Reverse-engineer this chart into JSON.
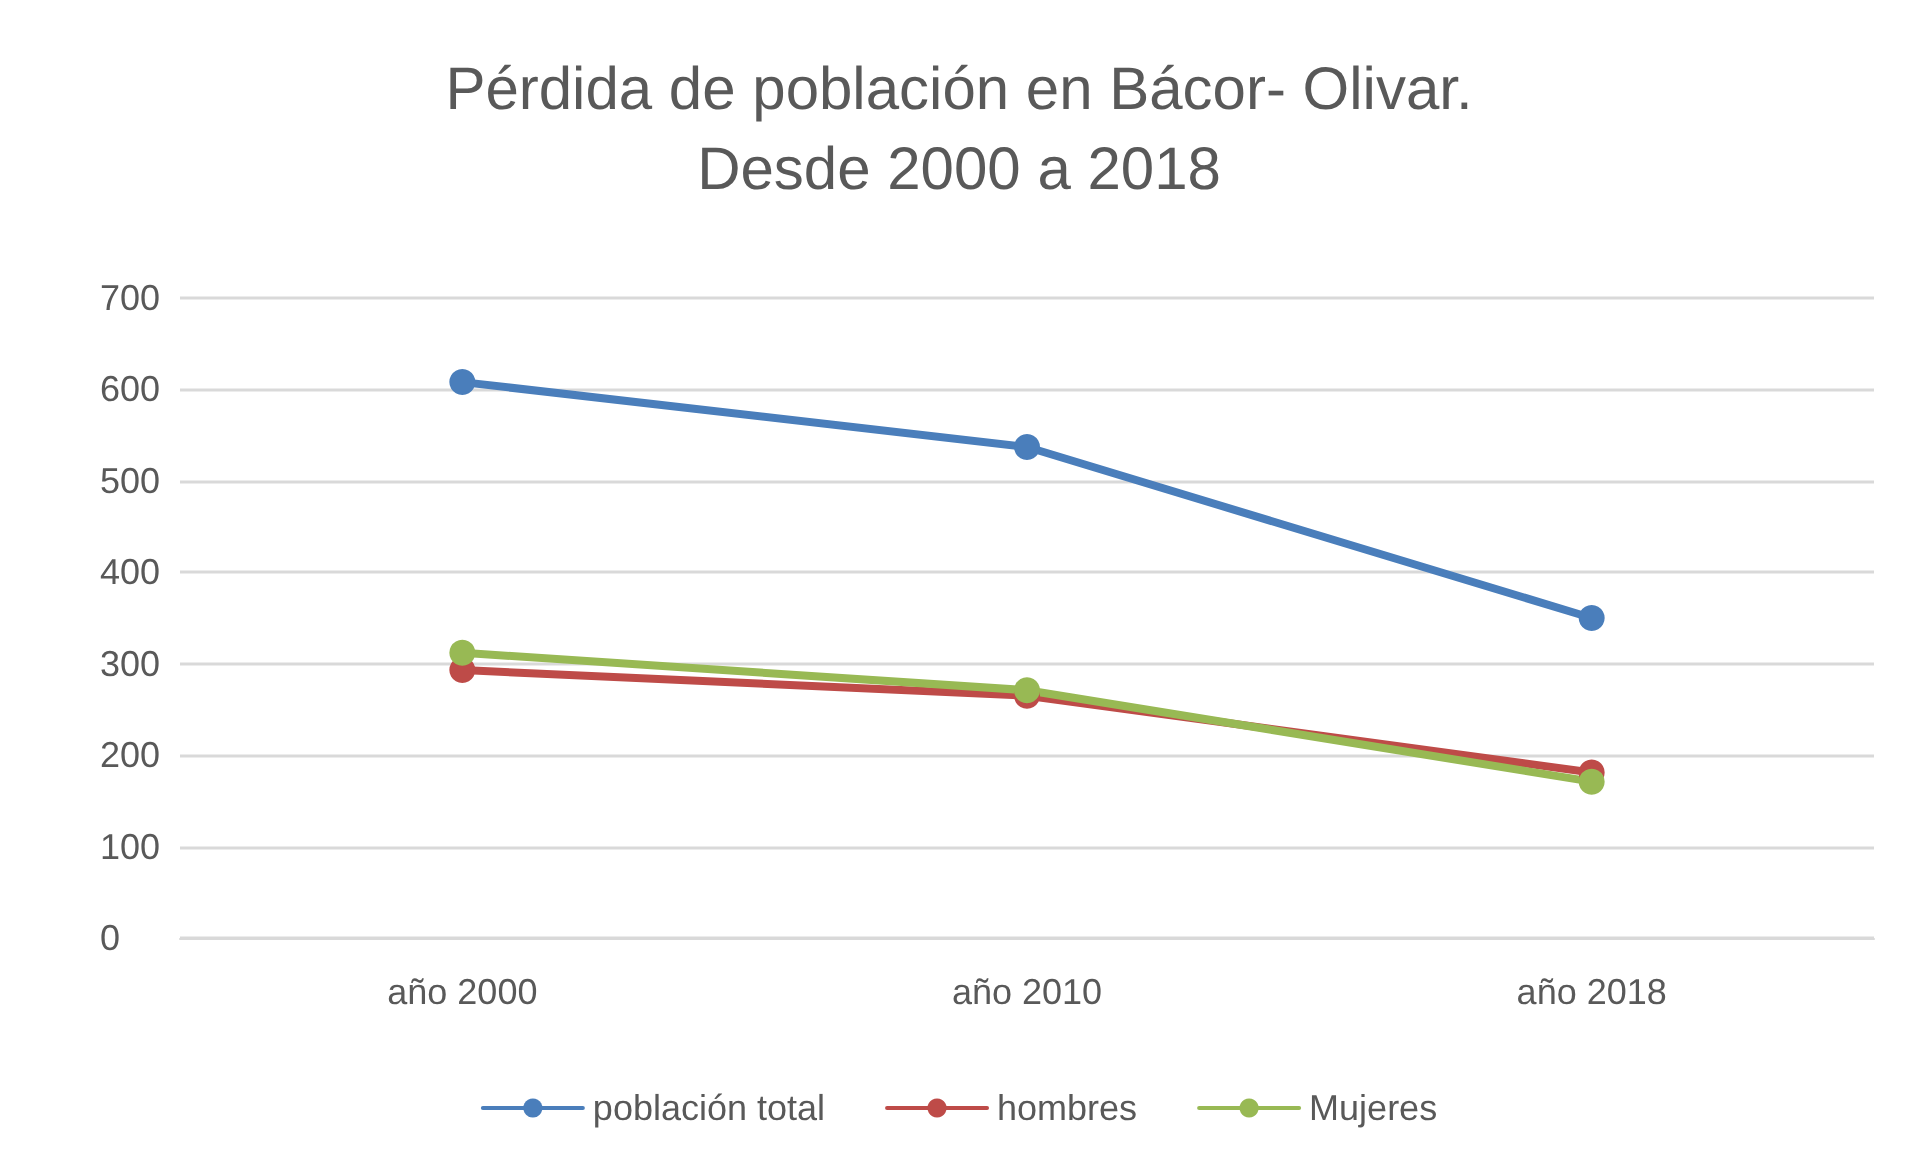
{
  "chart_data": {
    "type": "line",
    "title": "Pérdida de población en Bácor- Olivar.\nDesde 2000 a 2018",
    "categories": [
      "año 2000",
      "año 2010",
      "año 2018"
    ],
    "series": [
      {
        "name": "población total",
        "color": "#4a7ebb",
        "values": [
          608,
          537,
          350
        ]
      },
      {
        "name": "hombres",
        "color": "#be4b48",
        "values": [
          293,
          265,
          181
        ]
      },
      {
        "name": "Mujeres",
        "color": "#98b954",
        "values": [
          312,
          271,
          171
        ]
      }
    ],
    "ylim": [
      0,
      700
    ],
    "yticks": [
      0,
      100,
      200,
      300,
      400,
      500,
      600,
      700
    ],
    "grid": "y",
    "legend": "bottom",
    "marker": "circle",
    "line_style": "solid"
  }
}
